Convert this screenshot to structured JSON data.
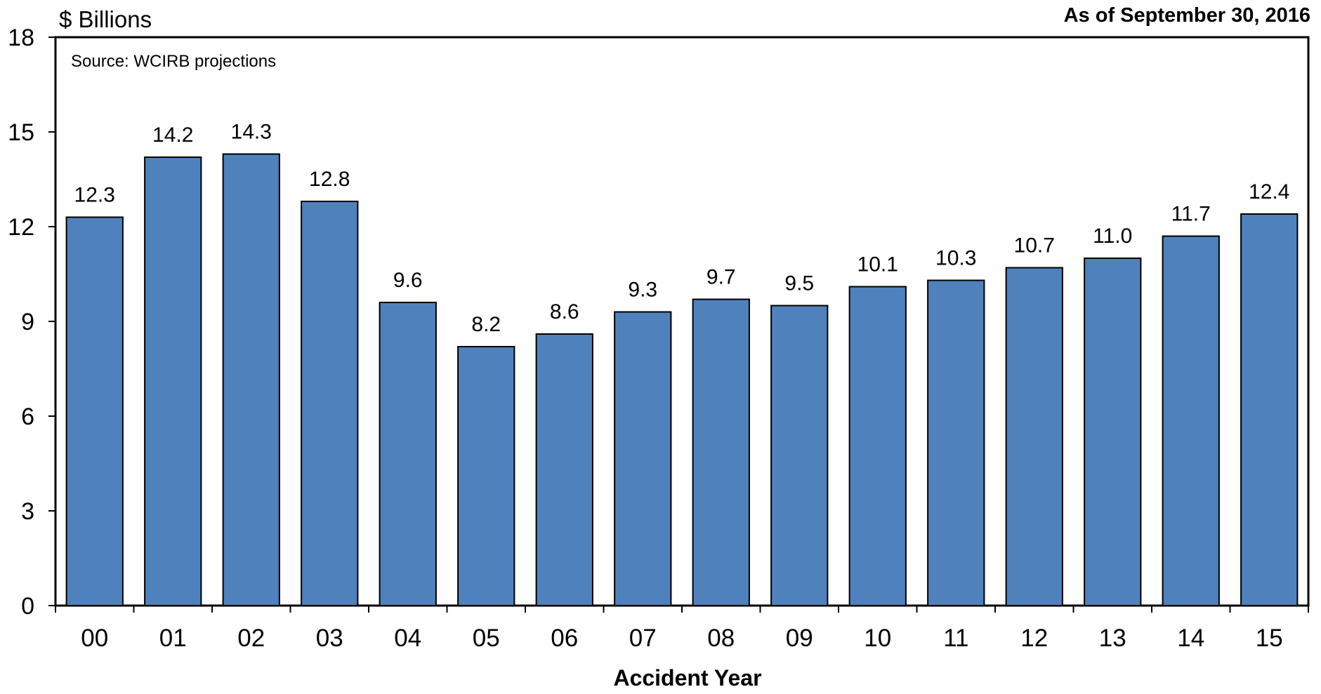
{
  "chart_data": {
    "type": "bar",
    "ylabel": "$ Billions",
    "xlabel": "Accident Year",
    "annotation_top_right": "As of September 30, 2016",
    "source_note": "Source: WCIRB projections",
    "categories": [
      "00",
      "01",
      "02",
      "03",
      "04",
      "05",
      "06",
      "07",
      "08",
      "09",
      "10",
      "11",
      "12",
      "13",
      "14",
      "15"
    ],
    "values": [
      12.3,
      14.2,
      14.3,
      12.8,
      9.6,
      8.2,
      8.6,
      9.3,
      9.7,
      9.5,
      10.1,
      10.3,
      10.7,
      11.0,
      11.7,
      12.4
    ],
    "data_labels": [
      "12.3",
      "14.2",
      "14.3",
      "12.8",
      "9.6",
      "8.2",
      "8.6",
      "9.3",
      "9.7",
      "9.5",
      "10.1",
      "10.3",
      "10.7",
      "11.0",
      "11.7",
      "12.4"
    ],
    "ylim": [
      0,
      18
    ],
    "yticks": [
      0,
      3,
      6,
      9,
      12,
      15,
      18
    ],
    "grid": false,
    "legend": "none",
    "bar_color": "#4f81bd",
    "bar_edge_color": "#000000"
  }
}
